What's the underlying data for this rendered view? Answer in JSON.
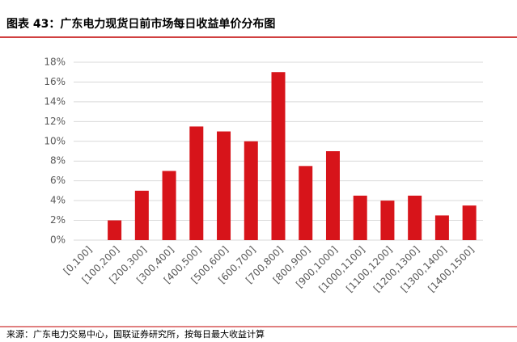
{
  "chart_data": {
    "type": "bar",
    "title": "图表 43：广东电力现货日前市场每日收益单价分布图",
    "source": "来源：广东电力交易中心，国联证券研究所，按每日最大收益计算",
    "categories": [
      "[0,100]",
      "[100,200]",
      "[200,300]",
      "[300,400]",
      "[400,500]",
      "[500,600]",
      "[600,700]",
      "[700,800]",
      "[800,900]",
      "[900,1000]",
      "[1000,1100]",
      "[1100,1200]",
      "[1200,1300]",
      "[1300,1400]",
      "[1400,1500]"
    ],
    "values": [
      0,
      2,
      5,
      7,
      11.5,
      11,
      10,
      17,
      7.5,
      9,
      4.5,
      4,
      4.5,
      2.5,
      3.5
    ],
    "color": "#d7141a",
    "ylim": [
      0,
      18
    ],
    "yticks": [
      {
        "value": 0,
        "label": "0%"
      },
      {
        "value": 2,
        "label": "2%"
      },
      {
        "value": 4,
        "label": "4%"
      },
      {
        "value": 6,
        "label": "6%"
      },
      {
        "value": 8,
        "label": "8%"
      },
      {
        "value": 10,
        "label": "10%"
      },
      {
        "value": 12,
        "label": "12%"
      },
      {
        "value": 14,
        "label": "14%"
      },
      {
        "value": 16,
        "label": "16%"
      },
      {
        "value": 18,
        "label": "18%"
      }
    ],
    "grid": true
  }
}
